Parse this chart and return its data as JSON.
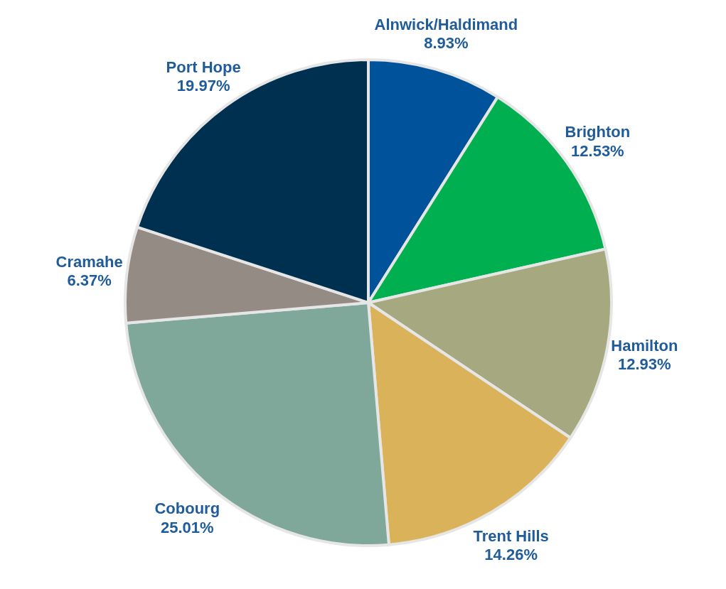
{
  "chart_data": {
    "type": "pie",
    "categories": [
      "Alnwick/Haldimand",
      "Brighton",
      "Hamilton",
      "Trent Hills",
      "Cobourg",
      "Cramahe",
      "Port Hope"
    ],
    "values": [
      8.93,
      12.53,
      12.93,
      14.26,
      25.01,
      6.37,
      19.97
    ],
    "value_labels": [
      "8.93%",
      "12.53%",
      "12.93%",
      "14.26%",
      "25.01%",
      "6.37%",
      "19.97%"
    ],
    "colors": [
      "#00539b",
      "#00b050",
      "#a6a87f",
      "#d9b25a",
      "#7fa89a",
      "#958b85",
      "#00304f"
    ]
  }
}
